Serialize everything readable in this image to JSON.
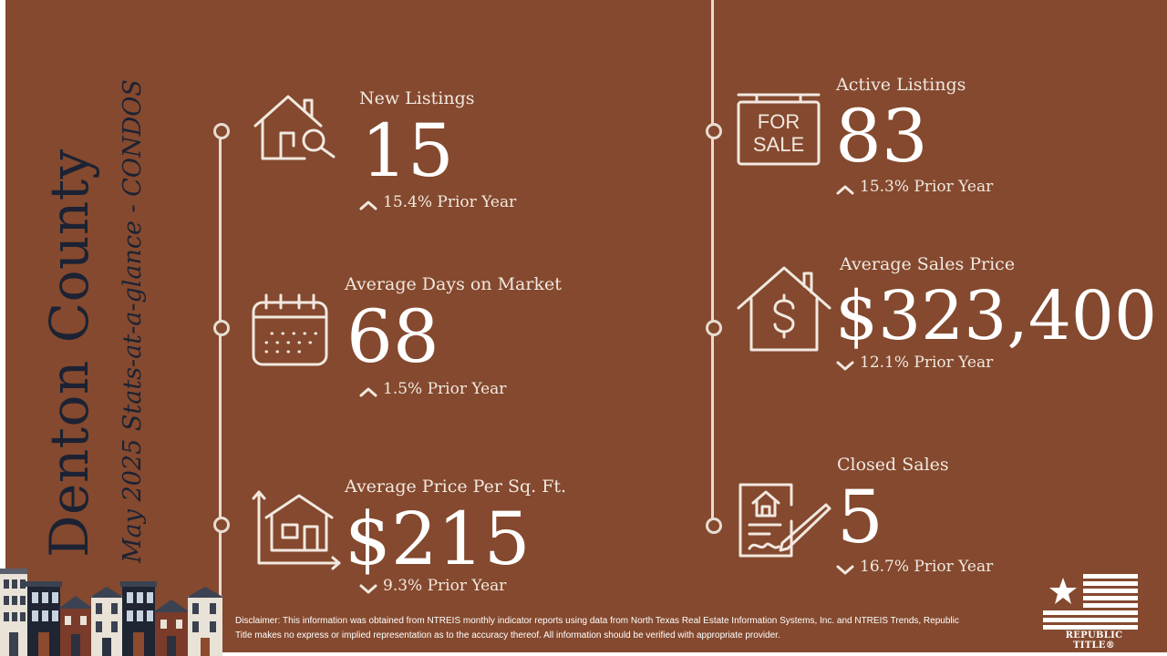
{
  "title": {
    "county": "Denton County",
    "subtitle": "May 2025 Stats-at-a-glance - CONDOS"
  },
  "stats": [
    {
      "id": "new-listings",
      "label": "New Listings",
      "value": "15",
      "direction": "up",
      "change": "15.4% Prior Year",
      "icon": "house-search-icon"
    },
    {
      "id": "avg-days-on-market",
      "label": "Average Days on Market",
      "value": "68",
      "direction": "up",
      "change": "1.5% Prior Year",
      "icon": "calendar-icon"
    },
    {
      "id": "avg-price-per-sqft",
      "label": "Average Price Per Sq. Ft.",
      "value": "$215",
      "direction": "down",
      "change": "9.3% Prior Year",
      "icon": "house-measure-icon"
    },
    {
      "id": "active-listings",
      "label": "Active Listings",
      "value": "83",
      "direction": "up",
      "change": "15.3% Prior Year",
      "icon": "for-sale-sign-icon",
      "sign_line1": "FOR",
      "sign_line2": "SALE"
    },
    {
      "id": "avg-sales-price",
      "label": "Average Sales Price",
      "value": "$323,400",
      "direction": "down",
      "change": "12.1% Prior Year",
      "icon": "house-dollar-icon"
    },
    {
      "id": "closed-sales",
      "label": "Closed Sales",
      "value": "5",
      "direction": "down",
      "change": "16.7% Prior Year",
      "icon": "signed-document-icon"
    }
  ],
  "disclaimer": "Disclaimer: This information was obtained from NTREIS monthly indicator reports using data from North Texas Real Estate Information Systems, Inc. and NTREIS Trends, Republic Title makes no express or implied representation as to the accuracy thereof. All information should be verified with appropriate provider.",
  "logo": {
    "text": "REPUBLIC TITLE®",
    "icon": "flag-star-icon"
  },
  "colors": {
    "background": "#84492E",
    "title": "#1C2233",
    "text": "#F2E8E0"
  }
}
